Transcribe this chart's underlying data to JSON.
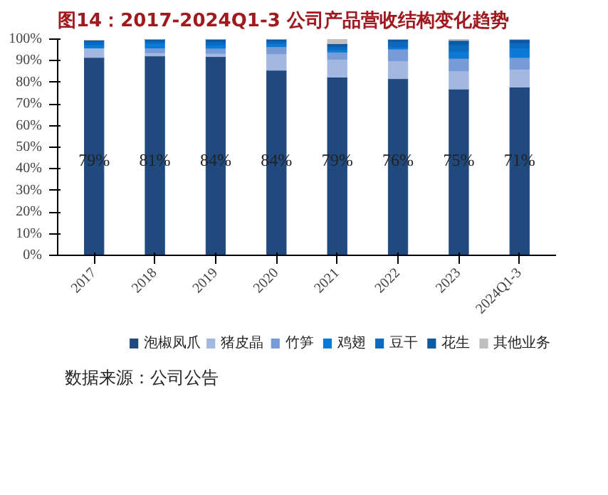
{
  "chart_data": {
    "type": "bar",
    "title": "图14：2017-2024Q1-3 公司产品营收结构变化趋势",
    "stacked": true,
    "categories": [
      "2017",
      "2018",
      "2019",
      "2020",
      "2021",
      "2022",
      "2023",
      "2024Q1-3"
    ],
    "series": [
      {
        "name": "泡椒凤爪",
        "color": "#204a7e",
        "values": [
          91.5,
          92.2,
          91.9,
          85.6,
          82.4,
          81.7,
          76.9,
          77.8
        ]
      },
      {
        "name": "猪皮晶",
        "color": "#a3b8e0",
        "values": [
          4.4,
          1.5,
          1.5,
          7.6,
          8.3,
          8.3,
          8.5,
          8.3
        ]
      },
      {
        "name": "竹笋",
        "color": "#779bd6",
        "values": [
          null,
          2.2,
          2.4,
          3.3,
          3.3,
          5.4,
          5.7,
          5.4
        ]
      },
      {
        "name": "鸡翅",
        "color": "#0a7ad6",
        "values": [
          1.5,
          2.2,
          1.5,
          1.5,
          1.3,
          0.9,
          3.3,
          4.4
        ]
      },
      {
        "name": "豆干",
        "color": "#0a6abf",
        "values": [
          1.6,
          1.0,
          1.5,
          1.2,
          1.3,
          2.6,
          3.0,
          2.4
        ]
      },
      {
        "name": "花生",
        "color": "#0c5aa6",
        "values": [
          0.5,
          0.9,
          1.2,
          0.8,
          1.3,
          1.0,
          2.0,
          1.5
        ]
      },
      {
        "name": "其他业务",
        "color": "#bfbfbf",
        "values": [
          0,
          0,
          0,
          0,
          2.1,
          0.2,
          0.6,
          0.2
        ]
      }
    ],
    "ylim": [
      0,
      100
    ],
    "yticks": [
      {
        "value": 0,
        "label": "0%"
      },
      {
        "value": 10,
        "label": "10%"
      },
      {
        "value": 20,
        "label": "20%"
      },
      {
        "value": 30,
        "label": "30%"
      },
      {
        "value": 40,
        "label": "40%"
      },
      {
        "value": 50,
        "label": "50%"
      },
      {
        "value": 60,
        "label": "60%"
      },
      {
        "value": 70,
        "label": "70%"
      },
      {
        "value": 80,
        "label": "80%"
      },
      {
        "value": 90,
        "label": "90%"
      },
      {
        "value": 100,
        "label": "100%"
      }
    ],
    "grid": false,
    "legend": "bottom",
    "annotations": [
      "79%",
      "81%",
      "84%",
      "84%",
      "79%",
      "76%",
      "75%",
      "71%",
      "数据来源：公司公告"
    ]
  }
}
